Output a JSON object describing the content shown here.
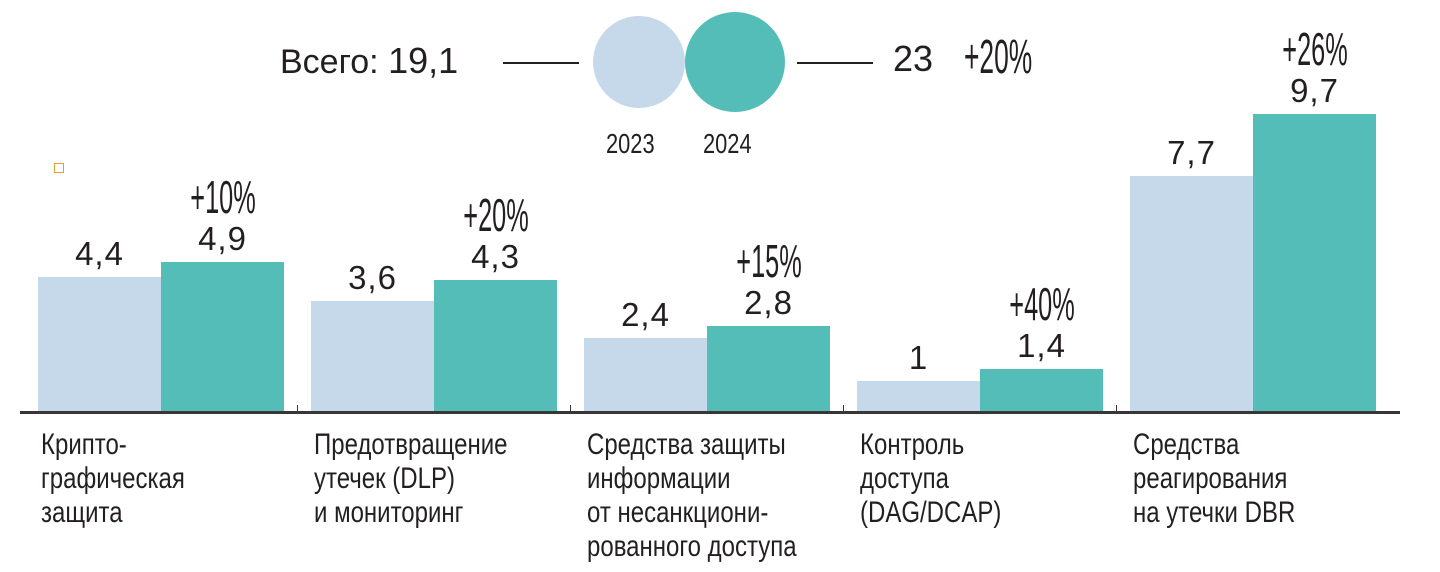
{
  "header": {
    "total_label": "Всего:",
    "total_2023": "19,1",
    "total_2024": "23",
    "total_change": "+20%"
  },
  "legend": [
    {
      "label": "2023",
      "color": "#c5d9ea"
    },
    {
      "label": "2024",
      "color": "#55bdb8"
    }
  ],
  "chart_data": {
    "type": "bar",
    "categories": [
      [
        "Крипто-",
        "графическая",
        "защита"
      ],
      [
        "Предотвращение",
        "утечек (DLP)",
        "и мониторинг"
      ],
      [
        "Средства защиты",
        "информации",
        "от несанкциони-",
        "рованного доступа"
      ],
      [
        "Контроль",
        "доступа",
        "(DAG/DCAP)"
      ],
      [
        "Средства",
        "реагирования",
        "на утечки DBR"
      ]
    ],
    "series": [
      {
        "name": "2023",
        "values": [
          4.4,
          3.6,
          2.4,
          1,
          7.7
        ],
        "labels": [
          "4,4",
          "3,6",
          "2,4",
          "1",
          "7,7"
        ],
        "color": "#c5d9ea"
      },
      {
        "name": "2024",
        "values": [
          4.9,
          4.3,
          2.8,
          1.4,
          9.7
        ],
        "labels": [
          "4,9",
          "4,3",
          "2,8",
          "1,4",
          "9,7"
        ],
        "color": "#55bdb8"
      }
    ],
    "changes": [
      "+10%",
      "+20%",
      "+15%",
      "+40%",
      "+26%"
    ],
    "ylim": [
      0,
      10
    ],
    "grid": false,
    "legend_placement": "top-center"
  }
}
